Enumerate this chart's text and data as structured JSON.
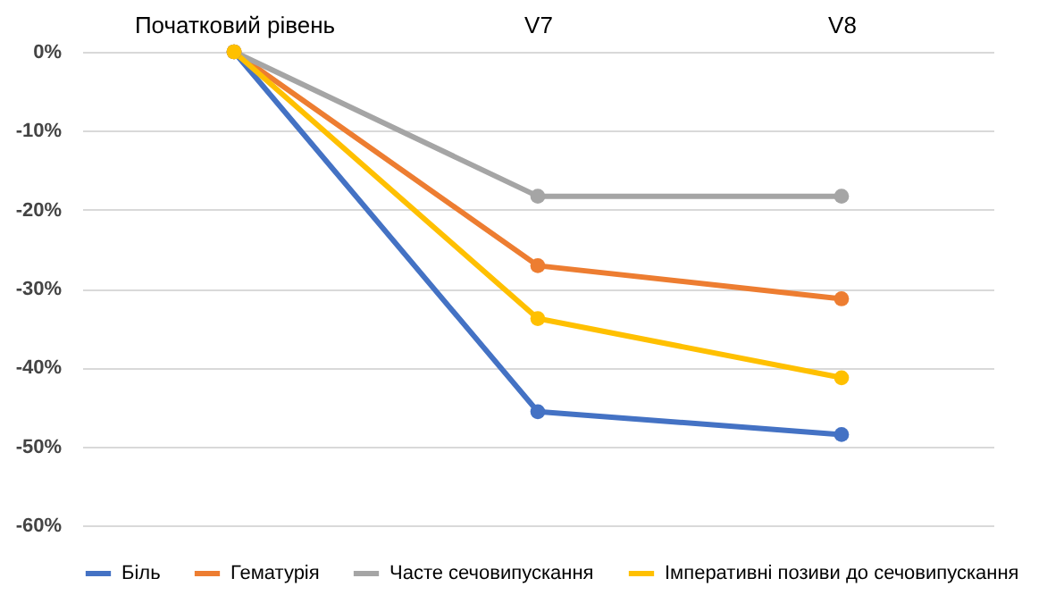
{
  "chart_data": {
    "type": "line",
    "categories": [
      "Початковий рівень",
      "V7",
      "V8"
    ],
    "series": [
      {
        "name": "Біль",
        "color": "#4472c4",
        "values": [
          0,
          -45.6,
          -48.5
        ]
      },
      {
        "name": "Гематурія",
        "color": "#ed7d31",
        "values": [
          0,
          -27.1,
          -31.3
        ]
      },
      {
        "name": "Часте сечовипускання",
        "color": "#a5a5a5",
        "values": [
          0,
          -18.3,
          -18.3
        ]
      },
      {
        "name": "Імперативні позиви до сечовипускання",
        "color": "#ffc000",
        "values": [
          0,
          -33.8,
          -41.3
        ]
      }
    ],
    "ylim": [
      -60,
      0
    ],
    "yticks": [
      {
        "value": 0,
        "label": "0%"
      },
      {
        "value": -10,
        "label": "-10%"
      },
      {
        "value": -20,
        "label": "-20%"
      },
      {
        "value": -30,
        "label": "-30%"
      },
      {
        "value": -40,
        "label": "-40%"
      },
      {
        "value": -50,
        "label": "-50%"
      },
      {
        "value": -60,
        "label": "-60%"
      }
    ],
    "grid": "y",
    "legend": "bottom",
    "marker": "circle",
    "line_style": "solid"
  }
}
